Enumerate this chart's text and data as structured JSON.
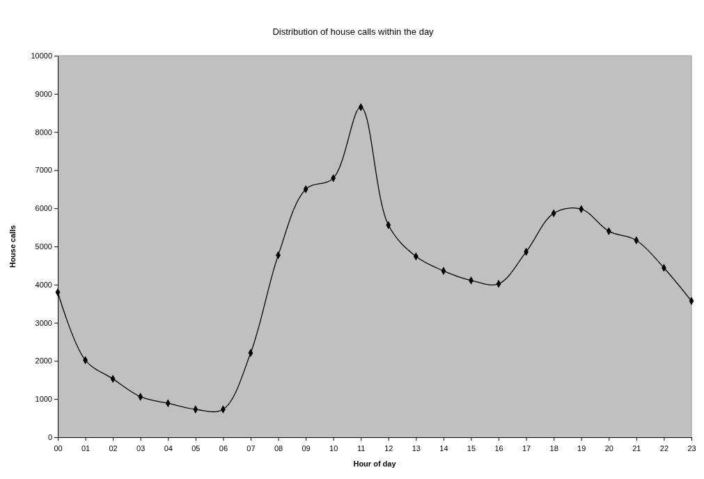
{
  "chart_data": {
    "type": "line",
    "title": "Distribution of house calls within the day",
    "xlabel": "Hour of day",
    "ylabel": "House calls",
    "categories": [
      "00",
      "01",
      "02",
      "03",
      "04",
      "05",
      "06",
      "07",
      "08",
      "09",
      "10",
      "11",
      "12",
      "13",
      "14",
      "15",
      "16",
      "17",
      "18",
      "19",
      "20",
      "21",
      "22",
      "23"
    ],
    "series": [
      {
        "color": "#000000",
        "values": [
          3800,
          2020,
          1530,
          1060,
          890,
          730,
          730,
          2210,
          4770,
          6500,
          6790,
          8650,
          5560,
          4740,
          4360,
          4110,
          4020,
          4860,
          5870,
          5980,
          5400,
          5160,
          4440,
          3570
        ]
      }
    ],
    "ylim": [
      0,
      10000
    ],
    "yticks": [
      0,
      1000,
      2000,
      3000,
      4000,
      5000,
      6000,
      7000,
      8000,
      9000,
      10000
    ],
    "grid": false,
    "marker": "diamond",
    "line_style": "solid"
  }
}
